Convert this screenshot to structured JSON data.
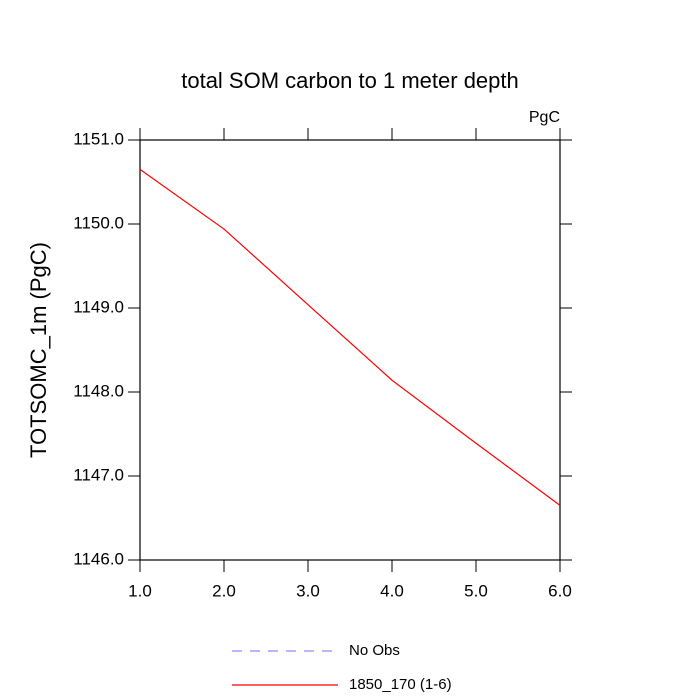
{
  "chart_data": {
    "type": "line",
    "title": "total SOM carbon to 1 meter depth",
    "units_label": "PgC",
    "y_label": "TOTSOMC_1m  (PgC)",
    "x": [
      1,
      2,
      3,
      4,
      5,
      6
    ],
    "series": [
      {
        "name": "No Obs",
        "color": "#8c8cff",
        "dash": true,
        "values": [
          null,
          null,
          null,
          null,
          null,
          null
        ]
      },
      {
        "name": "1850_170 (1-6)",
        "color": "#ff0000",
        "dash": false,
        "values": [
          1150.65,
          1149.94,
          1149.04,
          1148.14,
          1147.39,
          1146.65
        ]
      }
    ],
    "xlim": [
      1,
      6
    ],
    "xticks": [
      {
        "value": 1,
        "label": "1.0"
      },
      {
        "value": 2,
        "label": "2.0"
      },
      {
        "value": 3,
        "label": "3.0"
      },
      {
        "value": 4,
        "label": "4.0"
      },
      {
        "value": 5,
        "label": "5.0"
      },
      {
        "value": 6,
        "label": "6.0"
      }
    ],
    "ylim": [
      1146,
      1151
    ],
    "yticks": [
      {
        "value": 1146,
        "label": "1146.0"
      },
      {
        "value": 1147,
        "label": "1147.0"
      },
      {
        "value": 1148,
        "label": "1148.0"
      },
      {
        "value": 1149,
        "label": "1149.0"
      },
      {
        "value": 1150,
        "label": "1150.0"
      },
      {
        "value": 1151,
        "label": "1151.0"
      }
    ],
    "grid": false
  }
}
